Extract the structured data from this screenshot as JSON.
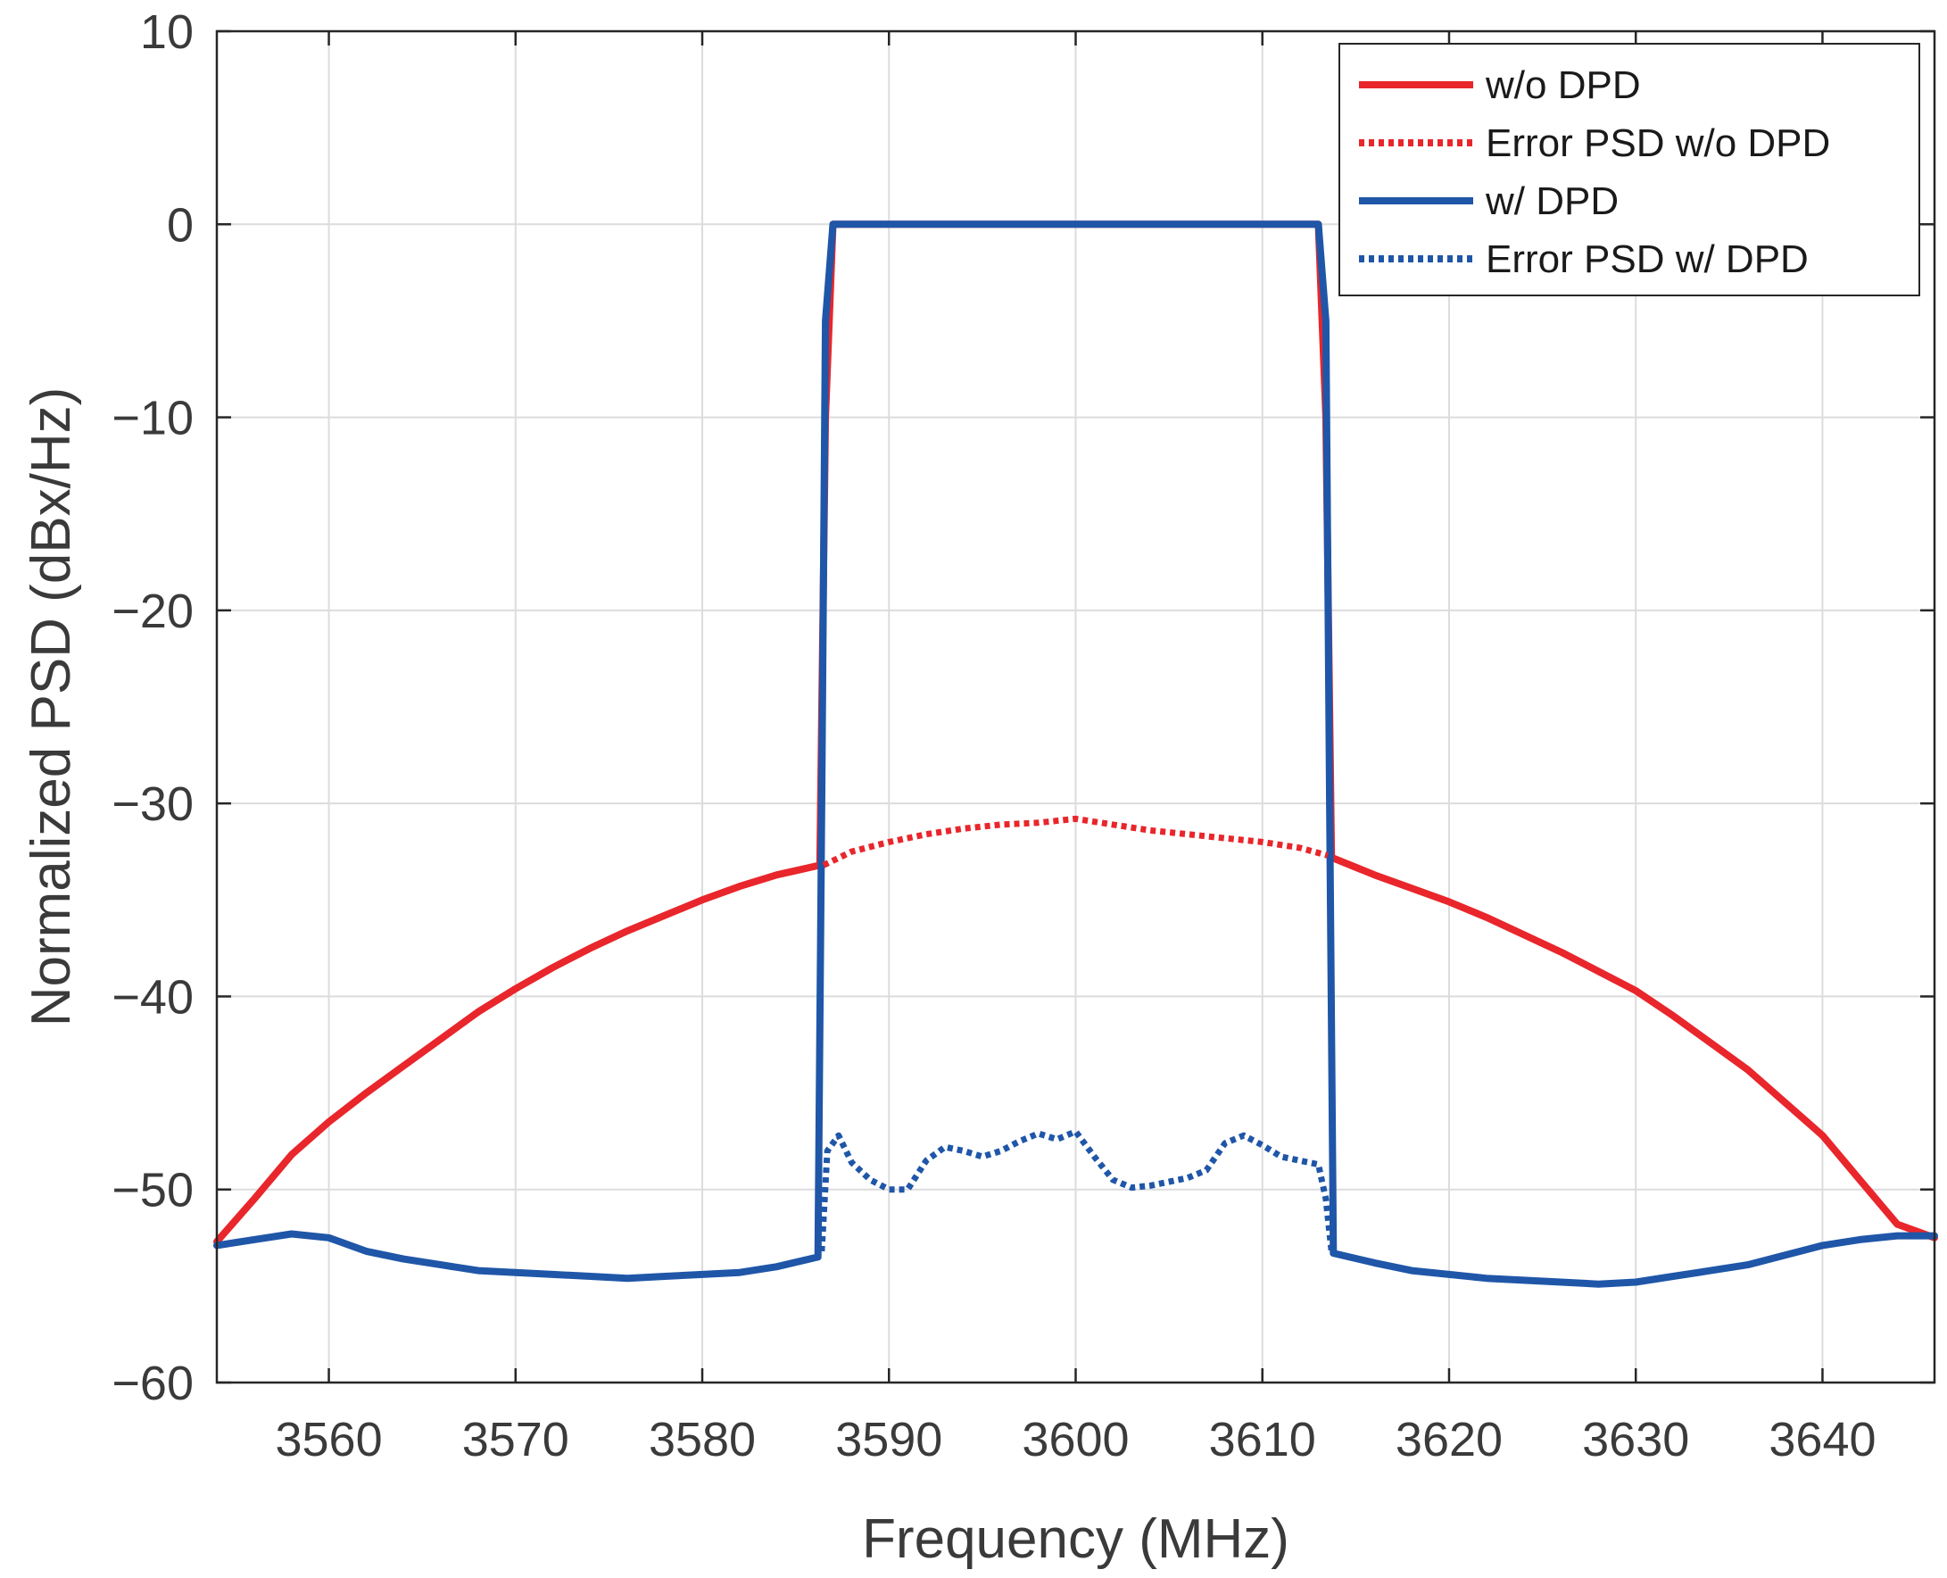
{
  "chart_data": {
    "type": "line",
    "xlabel": "Frequency (MHz)",
    "ylabel": "Normalized PSD (dBx/Hz)",
    "xlim": [
      3554,
      3646
    ],
    "ylim": [
      -60,
      10
    ],
    "xticks": [
      3560,
      3570,
      3580,
      3590,
      3600,
      3610,
      3620,
      3630,
      3640
    ],
    "yticks": [
      10,
      0,
      -10,
      -20,
      -30,
      -40,
      -50,
      -60
    ],
    "xtick_labels": [
      "3560",
      "3570",
      "3580",
      "3590",
      "3600",
      "3610",
      "3620",
      "3630",
      "3640"
    ],
    "ytick_labels": [
      "10",
      "0",
      "−10",
      "−20",
      "−30",
      "−40",
      "−50",
      "−60"
    ],
    "grid": true,
    "legend_position": "top-right",
    "series": [
      {
        "name": "w/o DPD",
        "color": "#e8262b",
        "style": "solid",
        "x": [
          3554,
          3556,
          3558,
          3560,
          3562,
          3564,
          3566,
          3568,
          3570,
          3572,
          3574,
          3576,
          3578,
          3580,
          3582,
          3584,
          3586.3,
          3586.6,
          3587,
          3613,
          3613.4,
          3613.7,
          3616,
          3618,
          3620,
          3622,
          3624,
          3626,
          3628,
          3630,
          3632,
          3634,
          3636,
          3638,
          3640,
          3642,
          3644,
          3646
        ],
        "y": [
          -52.7,
          -50.5,
          -48.2,
          -46.5,
          -45.0,
          -43.6,
          -42.2,
          -40.8,
          -39.6,
          -38.5,
          -37.5,
          -36.6,
          -35.8,
          -35.0,
          -34.3,
          -33.7,
          -33.2,
          -10,
          0,
          0,
          -10,
          -32.8,
          -33.7,
          -34.4,
          -35.1,
          -35.9,
          -36.8,
          -37.7,
          -38.7,
          -39.7,
          -41.0,
          -42.4,
          -43.8,
          -45.5,
          -47.2,
          -49.5,
          -51.8,
          -52.5
        ]
      },
      {
        "name": "Error PSD w/o DPD",
        "color": "#e8262b",
        "style": "dotted",
        "x": [
          3586.5,
          3588,
          3590,
          3592,
          3594,
          3596,
          3598,
          3600,
          3602,
          3604,
          3606,
          3608,
          3610,
          3612,
          3613.5
        ],
        "y": [
          -33.2,
          -32.5,
          -32.0,
          -31.6,
          -31.3,
          -31.1,
          -31.0,
          -30.8,
          -31.1,
          -31.4,
          -31.6,
          -31.8,
          -32.0,
          -32.3,
          -32.7
        ]
      },
      {
        "name": "w/ DPD",
        "color": "#1f56a8",
        "style": "solid",
        "x": [
          3554,
          3556,
          3558,
          3560,
          3562,
          3564,
          3566,
          3568,
          3570,
          3572,
          3574,
          3576,
          3578,
          3580,
          3582,
          3584,
          3586.2,
          3586.4,
          3586.6,
          3587,
          3590,
          3595,
          3600,
          3605,
          3610,
          3613,
          3613.4,
          3613.6,
          3613.8,
          3616,
          3618,
          3620,
          3622,
          3624,
          3626,
          3628,
          3630,
          3632,
          3634,
          3636,
          3638,
          3640,
          3642,
          3644,
          3646
        ],
        "y": [
          -52.9,
          -52.6,
          -52.3,
          -52.5,
          -53.2,
          -53.6,
          -53.9,
          -54.2,
          -54.3,
          -54.4,
          -54.5,
          -54.6,
          -54.5,
          -54.4,
          -54.3,
          -54.0,
          -53.5,
          -30,
          -5,
          0,
          0,
          0,
          0,
          0,
          0,
          0,
          -5,
          -30,
          -53.3,
          -53.8,
          -54.2,
          -54.4,
          -54.6,
          -54.7,
          -54.8,
          -54.9,
          -54.8,
          -54.5,
          -54.2,
          -53.9,
          -53.4,
          -52.9,
          -52.6,
          -52.4,
          -52.4
        ]
      },
      {
        "name": "Error PSD w/ DPD",
        "color": "#1f56a8",
        "style": "dotted",
        "x": [
          3586.4,
          3586.7,
          3587.3,
          3588,
          3589,
          3590,
          3591,
          3592,
          3593,
          3594,
          3595,
          3596,
          3597,
          3598,
          3599,
          3600,
          3601,
          3602,
          3603,
          3604,
          3605,
          3606,
          3607,
          3608,
          3609,
          3610,
          3611,
          3612,
          3613,
          3613.4,
          3613.7
        ],
        "y": [
          -53.2,
          -48.0,
          -47.2,
          -48.6,
          -49.5,
          -50.0,
          -50.0,
          -48.5,
          -47.8,
          -48.0,
          -48.3,
          -48.0,
          -47.5,
          -47.1,
          -47.4,
          -47.0,
          -48.3,
          -49.5,
          -49.9,
          -49.8,
          -49.6,
          -49.4,
          -49.0,
          -47.6,
          -47.2,
          -47.7,
          -48.3,
          -48.5,
          -48.7,
          -50.5,
          -53.2
        ]
      }
    ]
  }
}
